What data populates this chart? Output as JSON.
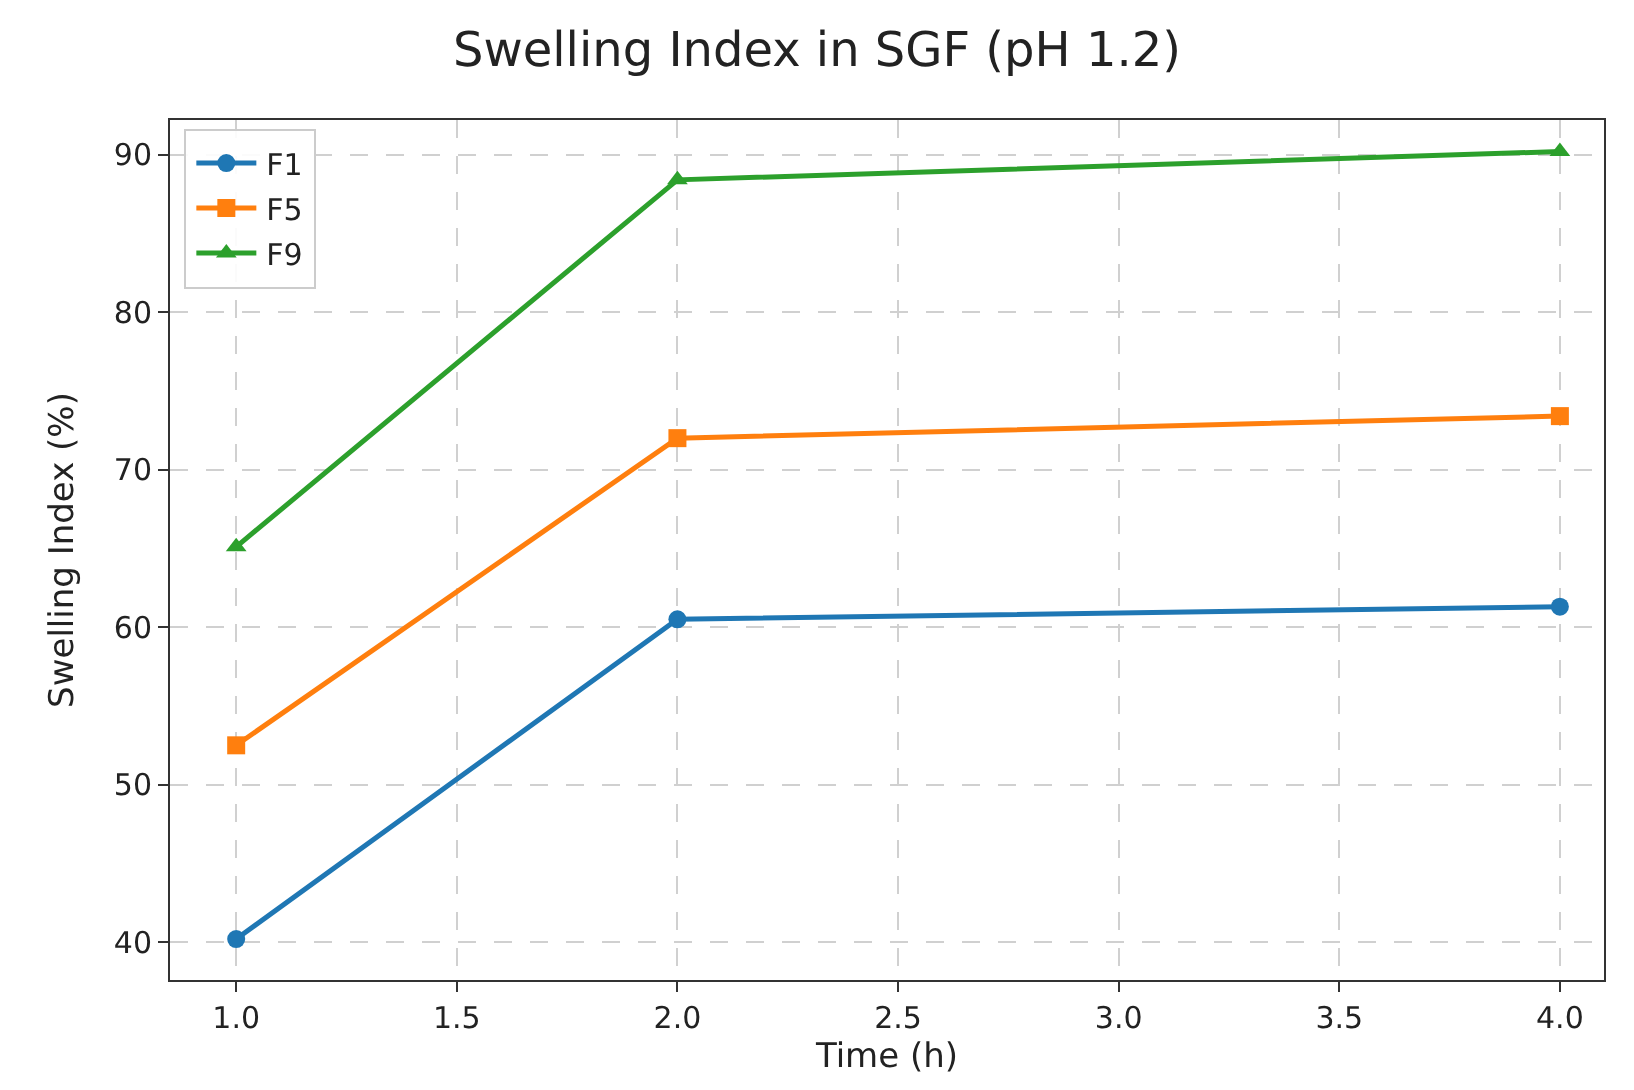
{
  "chart_data": {
    "type": "line",
    "title": "Swelling Index in SGF (pH 1.2)",
    "xlabel": "Time (h)",
    "ylabel": "Swelling Index (%)",
    "x": [
      1.0,
      2.0,
      4.0
    ],
    "series": [
      {
        "name": "F1",
        "color": "#1f77b4",
        "marker": "circle",
        "values": [
          40.2,
          60.5,
          61.3
        ]
      },
      {
        "name": "F5",
        "color": "#ff7f0e",
        "marker": "square",
        "values": [
          52.5,
          72.0,
          73.4
        ]
      },
      {
        "name": "F9",
        "color": "#2ca02c",
        "marker": "triangle",
        "values": [
          65.1,
          88.4,
          90.2
        ]
      }
    ],
    "xlim": [
      0.85,
      4.1
    ],
    "xticks": [
      {
        "value": 1.0,
        "label": "1.0"
      },
      {
        "value": 1.5,
        "label": "1.5"
      },
      {
        "value": 2.0,
        "label": "2.0"
      },
      {
        "value": 2.5,
        "label": "2.5"
      },
      {
        "value": 3.0,
        "label": "3.0"
      },
      {
        "value": 3.5,
        "label": "3.5"
      },
      {
        "value": 4.0,
        "label": "4.0"
      }
    ],
    "ylim": [
      37.6,
      92.2
    ],
    "yticks": [
      40,
      50,
      60,
      70,
      80,
      90
    ],
    "grid": true,
    "legend": "top left",
    "line_style": "solid"
  }
}
